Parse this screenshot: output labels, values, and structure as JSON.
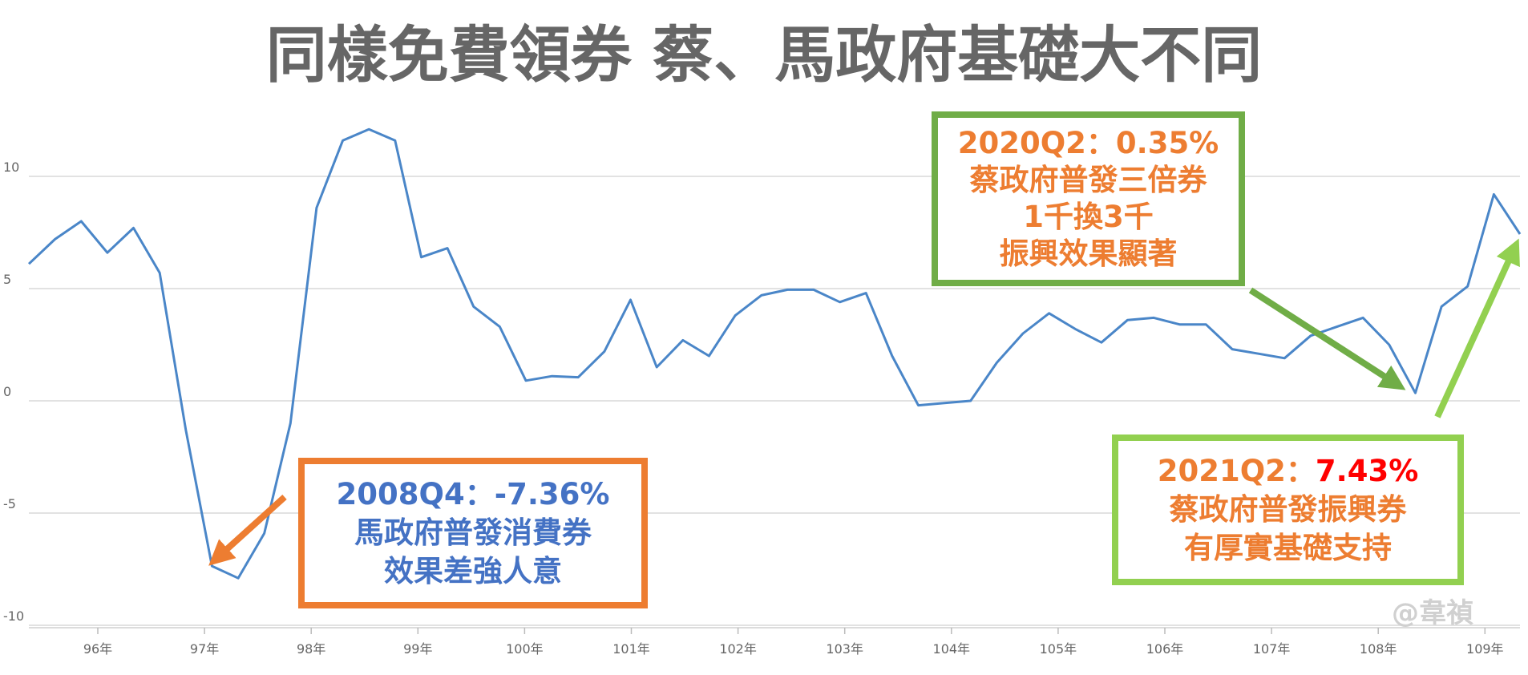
{
  "chart_data": {
    "type": "line",
    "title": "同樣免費領券 蔡、馬政府基礎大不同",
    "xlabel": "",
    "ylabel": "",
    "ylim": [
      -10,
      12
    ],
    "yticks": [
      10,
      5,
      0,
      -5,
      -10
    ],
    "ytick_labels": [
      "10",
      "5",
      "0",
      "-5",
      "-10"
    ],
    "x_tick_labels": [
      "96年",
      "97年",
      "98年",
      "99年",
      "100年",
      "101年",
      "102年",
      "103年",
      "104年",
      "105年",
      "106年",
      "107年",
      "108年",
      "109年"
    ],
    "grid": true,
    "line_color": "#4a86c8",
    "series": [
      {
        "values": [
          6.1,
          7.2,
          8.0,
          6.6,
          7.7,
          5.7,
          -1.3,
          -7.36,
          -7.9,
          -5.9,
          -1.0,
          8.6,
          11.6,
          12.1,
          11.6,
          6.4,
          6.8,
          4.2,
          3.3,
          0.9,
          1.1,
          1.05,
          2.2,
          4.5,
          1.5,
          2.7,
          2.0,
          3.8,
          4.7,
          4.95,
          4.95,
          4.4,
          4.8,
          2.0,
          -0.2,
          -0.1,
          0.0,
          1.7,
          3.0,
          3.9,
          3.2,
          2.6,
          3.6,
          3.7,
          3.4,
          3.4,
          2.3,
          2.1,
          1.9,
          2.9,
          3.3,
          3.7,
          2.5,
          0.35,
          4.2,
          5.1,
          9.2,
          7.43
        ]
      }
    ],
    "annotations": [
      {
        "lines": [
          "2008Q4：-7.36%",
          "馬政府普發消費券",
          "效果差強人意"
        ],
        "border_color": "#ed7d31",
        "text_color": "#4472c4"
      },
      {
        "lines": [
          "2020Q2：0.35%",
          "蔡政府普發三倍券",
          "1千換3千",
          "振興效果顯著"
        ],
        "border_color": "#70ad47",
        "text_color": "#ed7d31"
      },
      {
        "label": "2021Q2：",
        "value": "7.43%",
        "lines": [
          "蔡政府普發振興券",
          "有厚實基礎支持"
        ],
        "border_color": "#92d050",
        "text_color": "#ed7d31",
        "value_color": "#ff0000"
      }
    ],
    "arrows": [
      {
        "color": "#ed7d31",
        "points_to": "2008Q4"
      },
      {
        "color": "#70ad47",
        "points_to": "2020Q2"
      },
      {
        "color": "#92d050",
        "points_to": "2021Q2"
      }
    ]
  },
  "watermark": "@韋禎"
}
